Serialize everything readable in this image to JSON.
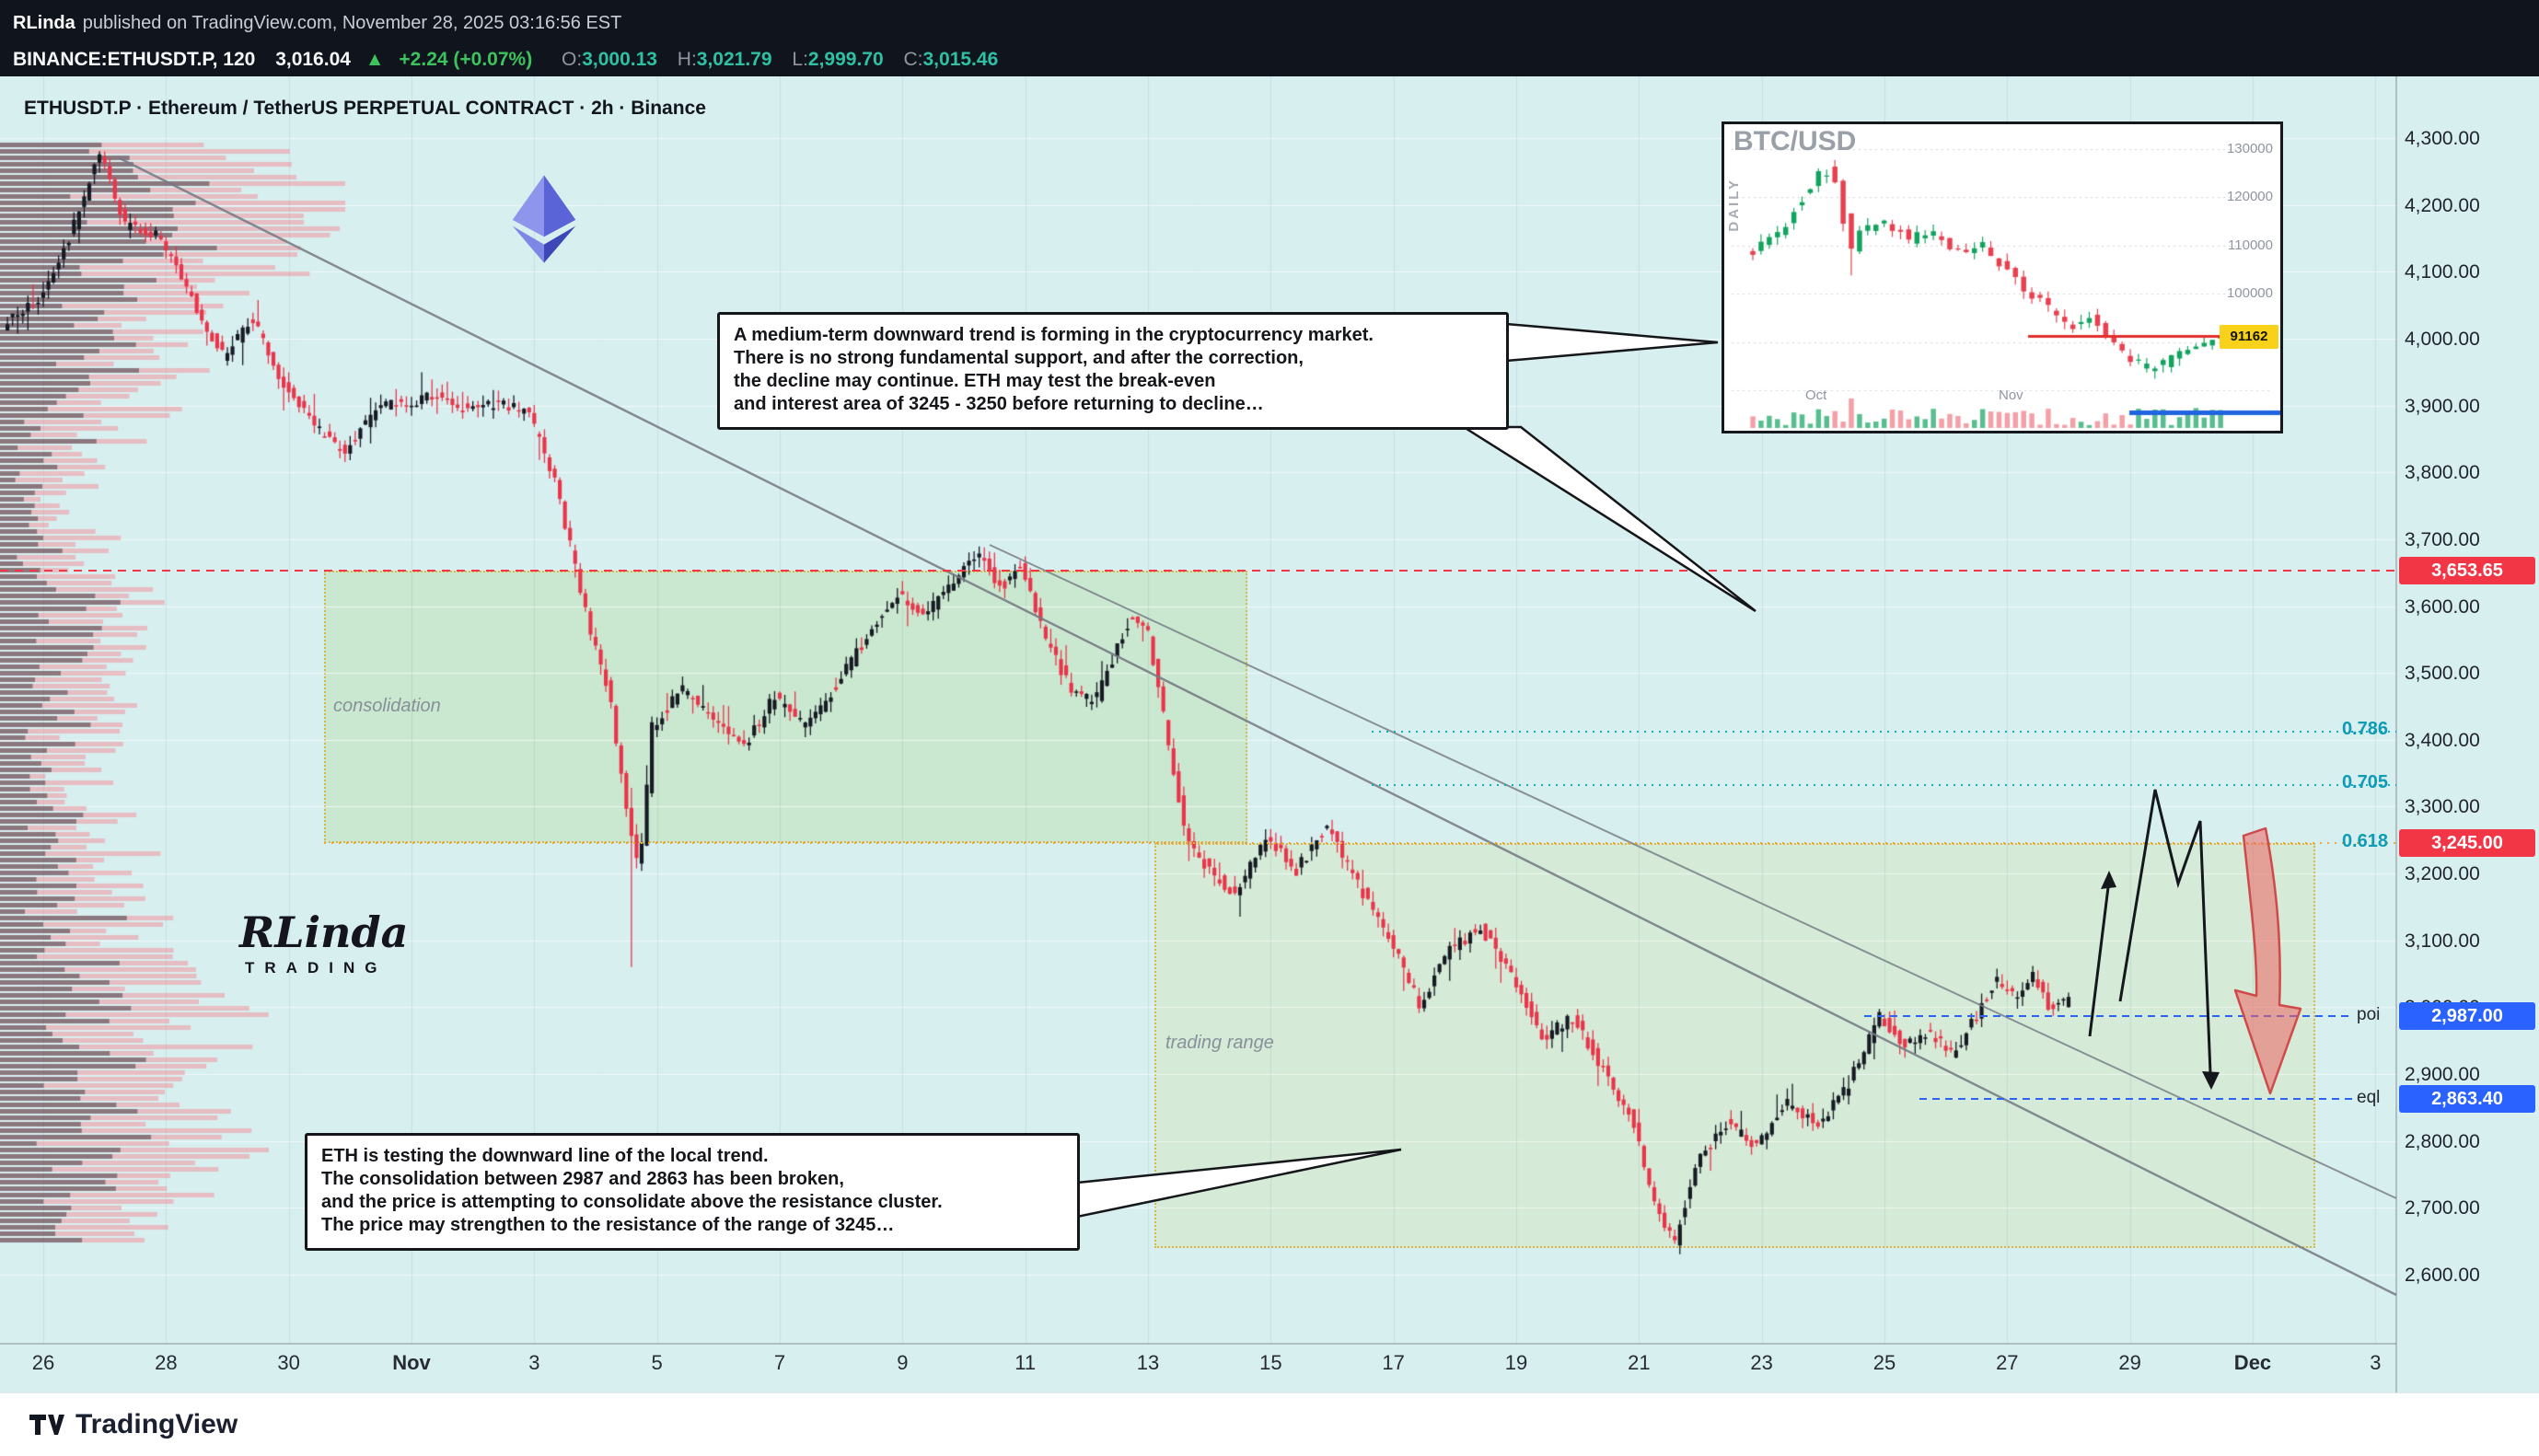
{
  "header": {
    "publisher": "RLinda",
    "published_text": "published on TradingView.com, November 28, 2025 03:16:56 EST"
  },
  "symbol_bar": {
    "symbol": "BINANCE:ETHUSDT.P, 120",
    "last_price": "3,016.04",
    "up_arrow": "▲",
    "change": "+2.24 (+0.07%)",
    "ohlc": [
      {
        "label": "O:",
        "value": "3,000.13"
      },
      {
        "label": "H:",
        "value": "3,021.79"
      },
      {
        "label": "L:",
        "value": "2,999.70"
      },
      {
        "label": "C:",
        "value": "3,015.46"
      }
    ]
  },
  "chart": {
    "title": "ETHUSDT.P · Ethereum / TetherUS PERPETUAL CONTRACT · 2h · Binance",
    "watermark": {
      "name": "RLinda",
      "sub": "TRADING"
    },
    "boxes": {
      "consolidation_label": "consolidation",
      "trading_range_label": "trading range"
    },
    "annotations": {
      "top": {
        "lines": [
          "A medium-term downward trend is forming in the cryptocurrency market.",
          "There is no strong fundamental support, and after the correction,",
          "the decline may continue. ETH may test the break-even",
          "and interest area of 3245 - 3250 before returning to decline…"
        ]
      },
      "bottom": {
        "lines": [
          "ETH is testing the downward line of the local trend.",
          "The consolidation between 2987 and 2863 has been broken,",
          "and the price is attempting to consolidate above the resistance cluster.",
          "The price may strengthen to the resistance of the range of 3245…"
        ]
      }
    },
    "levels": [
      {
        "label": "3,653.65",
        "price": 3653.65,
        "type": "red"
      },
      {
        "label": "3,245.00",
        "price": 3245.0,
        "type": "red"
      },
      {
        "label": "2,987.00",
        "price": 2987.0,
        "type": "blue",
        "tag": "poi"
      },
      {
        "label": "2,863.40",
        "price": 2863.4,
        "type": "blue",
        "tag": "eql"
      }
    ],
    "fib": [
      {
        "label": "0.786",
        "price": 3412
      },
      {
        "label": "0.705",
        "price": 3332
      },
      {
        "label": "0.618",
        "price": 3245
      }
    ]
  },
  "btc_inset": {
    "title": "BTC/USD",
    "side_label": "DAILY",
    "price_labels": [
      {
        "text": "130000",
        "value": 130
      },
      {
        "text": "120000",
        "value": 120
      },
      {
        "text": "110000",
        "value": 110
      },
      {
        "text": "100000",
        "value": 100
      }
    ],
    "current_badge": "91162",
    "axis_labels": [
      "Oct",
      "Nov"
    ]
  },
  "time_axis": {
    "labels": [
      "26",
      "28",
      "30",
      "Nov",
      "3",
      "5",
      "7",
      "9",
      "11",
      "13",
      "15",
      "17",
      "19",
      "21",
      "23",
      "25",
      "27",
      "29",
      "Dec",
      "3"
    ],
    "month_indices": [
      3,
      18
    ]
  },
  "price_axis": {
    "labels": [
      "4,300.00",
      "4,200.00",
      "4,100.00",
      "4,000.00",
      "3,900.00",
      "3,800.00",
      "3,700.00",
      "3,600.00",
      "3,500.00",
      "3,400.00",
      "3,300.00",
      "3,200.00",
      "3,100.00",
      "3,000.00",
      "2,900.00",
      "2,800.00",
      "2,700.00",
      "2,600.00"
    ]
  },
  "footer": {
    "brand": "TradingView"
  },
  "chart_data": [
    {
      "type": "candlestick",
      "symbol": "BINANCE:ETHUSDT.P",
      "timeframe": "2h",
      "x_span": [
        "Oct 26",
        "Dec 3"
      ],
      "ylim": [
        2600,
        4300
      ],
      "candles_per_day": 12,
      "price_path_anchors_day_price": [
        [
          -0.6,
          4020
        ],
        [
          0,
          4060
        ],
        [
          0.5,
          4150
        ],
        [
          1,
          4280
        ],
        [
          1.4,
          4170
        ],
        [
          2,
          4150
        ],
        [
          2.5,
          4060
        ],
        [
          3,
          3975
        ],
        [
          3.5,
          4030
        ],
        [
          4,
          3930
        ],
        [
          4.6,
          3860
        ],
        [
          5,
          3830
        ],
        [
          5.5,
          3895
        ],
        [
          6,
          3905
        ],
        [
          6.5,
          3915
        ],
        [
          7,
          3890
        ],
        [
          7.5,
          3905
        ],
        [
          8,
          3885
        ],
        [
          8.4,
          3790
        ],
        [
          8.8,
          3640
        ],
        [
          9,
          3560
        ],
        [
          9.3,
          3470
        ],
        [
          9.55,
          3310
        ],
        [
          9.8,
          3200
        ],
        [
          10,
          3420
        ],
        [
          10.5,
          3475
        ],
        [
          11,
          3430
        ],
        [
          11.5,
          3390
        ],
        [
          12,
          3465
        ],
        [
          12.5,
          3420
        ],
        [
          13,
          3480
        ],
        [
          13.5,
          3555
        ],
        [
          14,
          3615
        ],
        [
          14.4,
          3585
        ],
        [
          15,
          3645
        ],
        [
          15.3,
          3680
        ],
        [
          15.7,
          3625
        ],
        [
          16,
          3660
        ],
        [
          16.4,
          3555
        ],
        [
          16.8,
          3480
        ],
        [
          17.2,
          3455
        ],
        [
          17.5,
          3520
        ],
        [
          17.8,
          3585
        ],
        [
          18.1,
          3555
        ],
        [
          18.4,
          3400
        ],
        [
          18.7,
          3260
        ],
        [
          19,
          3215
        ],
        [
          19.5,
          3165
        ],
        [
          20,
          3255
        ],
        [
          20.5,
          3205
        ],
        [
          21,
          3270
        ],
        [
          21.5,
          3185
        ],
        [
          22,
          3105
        ],
        [
          22.5,
          3005
        ],
        [
          23,
          3085
        ],
        [
          23.5,
          3120
        ],
        [
          24,
          3050
        ],
        [
          24.5,
          2955
        ],
        [
          25,
          2985
        ],
        [
          25.5,
          2905
        ],
        [
          26,
          2825
        ],
        [
          26.35,
          2705
        ],
        [
          26.65,
          2645
        ],
        [
          27,
          2765
        ],
        [
          27.5,
          2825
        ],
        [
          28,
          2795
        ],
        [
          28.5,
          2855
        ],
        [
          29,
          2825
        ],
        [
          29.5,
          2885
        ],
        [
          30,
          2990
        ],
        [
          30.4,
          2940
        ],
        [
          30.8,
          2965
        ],
        [
          31.2,
          2925
        ],
        [
          31.5,
          2975
        ],
        [
          31.9,
          3045
        ],
        [
          32.2,
          3015
        ],
        [
          32.5,
          3050
        ],
        [
          32.8,
          2995
        ],
        [
          33,
          3016
        ]
      ],
      "special_wicks": [
        {
          "day": 9.55,
          "low": 3060
        }
      ],
      "last_candle": {
        "o": 3000.13,
        "h": 3021.79,
        "l": 2999.7,
        "c": 3015.46
      },
      "horizontal_levels": [
        3653.65,
        3245.0,
        2987.0,
        2863.4
      ],
      "fib_levels": [
        {
          "label": "0.786",
          "price": 3412
        },
        {
          "label": "0.705",
          "price": 3332
        },
        {
          "label": "0.618",
          "price": 3245
        }
      ],
      "consolidation_box_price_range": [
        3245,
        3655
      ],
      "trading_range_box_price_range": [
        2642,
        3245
      ]
    },
    {
      "type": "candlestick",
      "symbol": "BTC/USD",
      "timeframe": "DAILY",
      "ylim_thousands": [
        78,
        132
      ],
      "current_price": 91162,
      "anchors_frac_pricek": [
        [
          0,
          108
        ],
        [
          0.05,
          111
        ],
        [
          0.09,
          115
        ],
        [
          0.13,
          121
        ],
        [
          0.17,
          126
        ],
        [
          0.2,
          122
        ],
        [
          0.22,
          107
        ],
        [
          0.25,
          113
        ],
        [
          0.3,
          115
        ],
        [
          0.35,
          111
        ],
        [
          0.4,
          113
        ],
        [
          0.45,
          108
        ],
        [
          0.5,
          111
        ],
        [
          0.55,
          106
        ],
        [
          0.6,
          101
        ],
        [
          0.65,
          97
        ],
        [
          0.7,
          93
        ],
        [
          0.74,
          96
        ],
        [
          0.78,
          90
        ],
        [
          0.83,
          86
        ],
        [
          0.87,
          84
        ],
        [
          0.91,
          87
        ],
        [
          0.95,
          89
        ],
        [
          1,
          91.2
        ]
      ]
    }
  ]
}
